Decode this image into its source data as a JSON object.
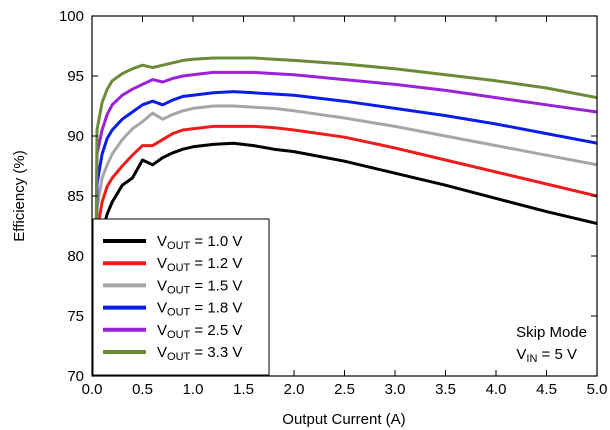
{
  "chart_data": {
    "type": "line",
    "title": "",
    "xlabel": "Output Current (A)",
    "ylabel": "Efficiency  (%)",
    "xlim": [
      0,
      5
    ],
    "ylim": [
      70,
      100
    ],
    "xticks": [
      0,
      0.5,
      1,
      1.5,
      2,
      2.5,
      3,
      3.5,
      4,
      4.5,
      5
    ],
    "xtick_labels": [
      "0.0",
      "0.5",
      "1.0",
      "1.5",
      "2.0",
      "2.5",
      "3.0",
      "3.5",
      "4.0",
      "4.5",
      "5.0"
    ],
    "yticks": [
      70,
      75,
      80,
      85,
      90,
      95,
      100
    ],
    "ytick_labels": [
      "70",
      "75",
      "80",
      "85",
      "90",
      "95",
      "100"
    ],
    "grid": false,
    "legend_position": "bottom-left",
    "annotation": {
      "line1": "Skip Mode",
      "line2_main": "V",
      "line2_sub": "IN",
      "line2_rest": " = 5 V"
    },
    "series": [
      {
        "name_main": "V",
        "name_sub": "OUT",
        "name_rest": " = 1.0 V",
        "color": "#000000",
        "x": [
          0.05,
          0.1,
          0.15,
          0.2,
          0.3,
          0.4,
          0.5,
          0.6,
          0.7,
          0.8,
          0.9,
          1.0,
          1.2,
          1.4,
          1.6,
          1.8,
          2.0,
          2.5,
          3.0,
          3.5,
          4.0,
          4.5,
          5.0
        ],
        "y": [
          79.5,
          82,
          83.5,
          84.5,
          85.9,
          86.5,
          88,
          87.6,
          88.2,
          88.6,
          88.9,
          89.1,
          89.3,
          89.4,
          89.2,
          88.9,
          88.7,
          87.9,
          86.9,
          85.9,
          84.8,
          83.7,
          82.7
        ]
      },
      {
        "name_main": "V",
        "name_sub": "OUT",
        "name_rest": " = 1.2 V",
        "color": "#ee1c1c",
        "x": [
          0.05,
          0.1,
          0.15,
          0.2,
          0.3,
          0.4,
          0.5,
          0.6,
          0.7,
          0.8,
          0.9,
          1.0,
          1.2,
          1.4,
          1.6,
          1.8,
          2.0,
          2.5,
          3.0,
          3.5,
          4.0,
          4.5,
          5.0
        ],
        "y": [
          82,
          84.5,
          85.8,
          86.5,
          87.5,
          88.4,
          89.2,
          89.2,
          89.7,
          90.2,
          90.5,
          90.6,
          90.8,
          90.8,
          90.8,
          90.7,
          90.5,
          89.9,
          89.0,
          88.0,
          87.0,
          86.0,
          85.0
        ]
      },
      {
        "name_main": "V",
        "name_sub": "OUT",
        "name_rest": " = 1.5 V",
        "color": "#a6a6a6",
        "x": [
          0.05,
          0.1,
          0.15,
          0.2,
          0.3,
          0.4,
          0.5,
          0.6,
          0.7,
          0.8,
          0.9,
          1.0,
          1.2,
          1.4,
          1.6,
          1.8,
          2.0,
          2.5,
          3.0,
          3.5,
          4.0,
          4.5,
          5.0
        ],
        "y": [
          84,
          86.5,
          87.6,
          88.5,
          89.7,
          90.6,
          91.2,
          91.9,
          91.4,
          91.8,
          92.1,
          92.3,
          92.5,
          92.5,
          92.4,
          92.3,
          92.1,
          91.5,
          90.8,
          90.0,
          89.2,
          88.4,
          87.6
        ]
      },
      {
        "name_main": "V",
        "name_sub": "OUT",
        "name_rest": " = 1.8 V",
        "color": "#0a1ee6",
        "x": [
          0.05,
          0.1,
          0.15,
          0.2,
          0.3,
          0.4,
          0.5,
          0.6,
          0.7,
          0.8,
          0.9,
          1.0,
          1.2,
          1.4,
          1.6,
          1.8,
          2.0,
          2.5,
          3.0,
          3.5,
          4.0,
          4.5,
          5.0
        ],
        "y": [
          86,
          88.5,
          89.8,
          90.5,
          91.4,
          92,
          92.6,
          92.9,
          92.6,
          93.0,
          93.3,
          93.4,
          93.6,
          93.7,
          93.6,
          93.5,
          93.4,
          92.9,
          92.3,
          91.7,
          91.0,
          90.2,
          89.4
        ]
      },
      {
        "name_main": "V",
        "name_sub": "OUT",
        "name_rest": " = 2.5 V",
        "color": "#9a22d8",
        "x": [
          0.05,
          0.1,
          0.15,
          0.2,
          0.3,
          0.4,
          0.5,
          0.6,
          0.7,
          0.8,
          0.9,
          1.0,
          1.2,
          1.4,
          1.6,
          1.8,
          2.0,
          2.5,
          3.0,
          3.5,
          4.0,
          4.5,
          5.0
        ],
        "y": [
          88.5,
          90.5,
          91.8,
          92.6,
          93.4,
          93.9,
          94.3,
          94.7,
          94.5,
          94.8,
          95.0,
          95.1,
          95.3,
          95.3,
          95.3,
          95.2,
          95.1,
          94.7,
          94.3,
          93.8,
          93.2,
          92.6,
          92.0
        ]
      },
      {
        "name_main": "V",
        "name_sub": "OUT",
        "name_rest": " = 3.3 V",
        "color": "#6a8c37",
        "x": [
          0.05,
          0.1,
          0.15,
          0.2,
          0.3,
          0.4,
          0.5,
          0.6,
          0.7,
          0.8,
          0.9,
          1.0,
          1.2,
          1.4,
          1.6,
          1.8,
          2.0,
          2.5,
          3.0,
          3.5,
          4.0,
          4.5,
          5.0
        ],
        "y": [
          90.5,
          92.8,
          93.9,
          94.6,
          95.2,
          95.6,
          95.9,
          95.7,
          95.9,
          96.1,
          96.3,
          96.4,
          96.5,
          96.5,
          96.5,
          96.4,
          96.3,
          96.0,
          95.6,
          95.1,
          94.6,
          94.0,
          93.2
        ]
      }
    ]
  }
}
